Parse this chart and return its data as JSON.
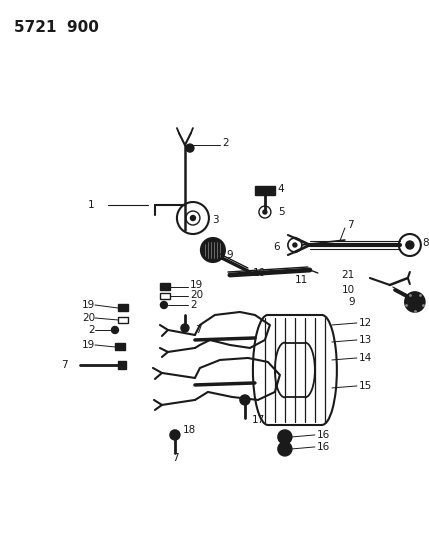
{
  "title": "5721  900",
  "bg_color": "#ffffff",
  "line_color": "#1a1a1a",
  "figsize": [
    4.29,
    5.33
  ],
  "dpi": 100
}
